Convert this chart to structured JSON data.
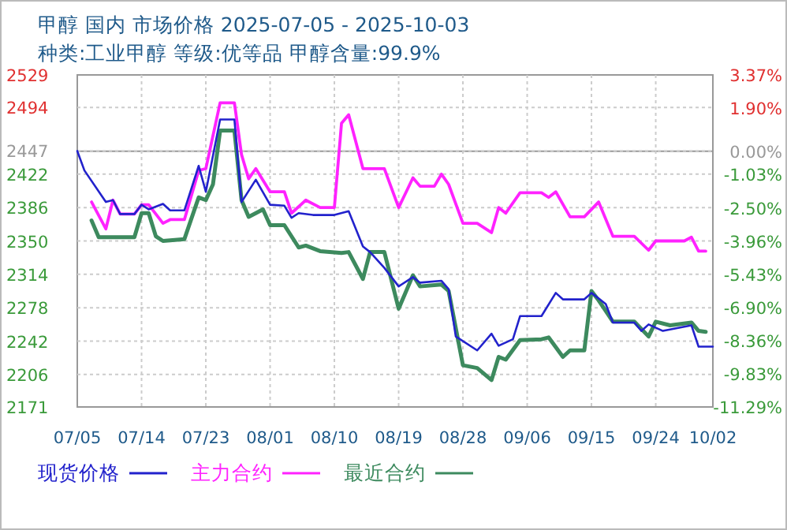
{
  "chart_data": {
    "type": "line",
    "title": "甲醇 国内 市场价格 2025-07-05 - 2025-10-03",
    "subtitle": "种类:工业甲醇 等级:优等品 甲醇含量:99.9%",
    "xlim": [
      "--07-05",
      "--10-02"
    ],
    "xticks": [
      {
        "value": "--07-05",
        "label": "07/05"
      },
      {
        "value": "--07-14",
        "label": "07/14"
      },
      {
        "value": "--07-23",
        "label": "07/23"
      },
      {
        "value": "--08-01",
        "label": "08/01"
      },
      {
        "value": "--08-10",
        "label": "08/10"
      },
      {
        "value": "--08-19",
        "label": "08/19"
      },
      {
        "value": "--08-28",
        "label": "08/28"
      },
      {
        "value": "--09-06",
        "label": "09/06"
      },
      {
        "value": "--09-15",
        "label": "09/15"
      },
      {
        "value": "--09-24",
        "label": "09/24"
      },
      {
        "value": "--10-02",
        "label": "10/02"
      }
    ],
    "ylim": [
      2171,
      2529
    ],
    "yticks": [
      2529,
      2494,
      2447,
      2422,
      2386,
      2350,
      2314,
      2278,
      2242,
      2206,
      2171
    ],
    "y2lim": [
      -11.29,
      3.37
    ],
    "y2ticks": [
      {
        "value": 3.37,
        "label": "3.37%"
      },
      {
        "value": 1.9,
        "label": "1.90%"
      },
      {
        "value": 0,
        "label": "0.00%"
      },
      {
        "value": -1.03,
        "label": "-1.03%"
      },
      {
        "value": -2.5,
        "label": "-2.50%"
      },
      {
        "value": -3.96,
        "label": "-3.96%"
      },
      {
        "value": -5.43,
        "label": "-5.43%"
      },
      {
        "value": -6.9,
        "label": "-6.90%"
      },
      {
        "value": -8.36,
        "label": "-8.36%"
      },
      {
        "value": -9.83,
        "label": "-9.83%"
      },
      {
        "value": -11.29,
        "label": "-11.29%"
      }
    ],
    "ref_lines": [
      {
        "axis": "y2",
        "value": 0,
        "color": "#999999",
        "line_style": "solid"
      }
    ],
    "grid": true,
    "legend": "bottom",
    "marker": "none",
    "line_style": "solid",
    "series": [
      {
        "name": "现货价格",
        "color": "#2222cc",
        "x": [
          "--07-05",
          "--07-06",
          "--07-09",
          "--07-10",
          "--07-11",
          "--07-13",
          "--07-14",
          "--07-15",
          "--07-17",
          "--07-18",
          "--07-20",
          "--07-22",
          "--07-23",
          "--07-25",
          "--07-27",
          "--07-28",
          "--07-30",
          "--08-01",
          "--08-03",
          "--08-04",
          "--08-05",
          "--08-07",
          "--08-10",
          "--08-12",
          "--08-14",
          "--08-15",
          "--08-17",
          "--08-19",
          "--08-21",
          "--08-22",
          "--08-25",
          "--08-26",
          "--08-27",
          "--08-30",
          "--09-01",
          "--09-02",
          "--09-04",
          "--09-05",
          "--09-08",
          "--09-10",
          "--09-11",
          "--09-14",
          "--09-15",
          "--09-17",
          "--09-18",
          "--09-21",
          "--09-22",
          "--09-23",
          "--09-25",
          "--09-29",
          "--09-30",
          "--10-02"
        ],
        "values": [
          2447,
          2426,
          2392,
          2394,
          2379,
          2379,
          2389,
          2384,
          2390,
          2383,
          2383,
          2431,
          2403,
          2481,
          2481,
          2392,
          2416,
          2389,
          2388,
          2375,
          2380,
          2378,
          2378,
          2382,
          2344,
          2338,
          2321,
          2301,
          2311,
          2305,
          2307,
          2298,
          2247,
          2232,
          2250,
          2237,
          2244,
          2269,
          2269,
          2294,
          2287,
          2287,
          2294,
          2282,
          2262,
          2262,
          2253,
          2260,
          2253,
          2259,
          2236,
          2236
        ]
      },
      {
        "name": "主力合约",
        "color": "#ff22ff",
        "x": [
          "--07-07",
          "--07-09",
          "--07-10",
          "--07-11",
          "--07-13",
          "--07-14",
          "--07-15",
          "--07-17",
          "--07-18",
          "--07-20",
          "--07-22",
          "--07-23",
          "--07-25",
          "--07-27",
          "--07-28",
          "--07-29",
          "--07-30",
          "--08-01",
          "--08-03",
          "--08-04",
          "--08-06",
          "--08-08",
          "--08-10",
          "--08-11",
          "--08-12",
          "--08-14",
          "--08-17",
          "--08-19",
          "--08-21",
          "--08-22",
          "--08-24",
          "--08-25",
          "--08-26",
          "--08-28",
          "--08-30",
          "--09-01",
          "--09-02",
          "--09-03",
          "--09-05",
          "--09-08",
          "--09-09",
          "--09-10",
          "--09-12",
          "--09-14",
          "--09-16",
          "--09-18",
          "--09-21",
          "--09-23",
          "--09-24",
          "--09-28",
          "--09-29",
          "--09-30",
          "--10-01"
        ],
        "values": [
          2392,
          2363,
          2394,
          2379,
          2379,
          2389,
          2389,
          2369,
          2373,
          2373,
          2426,
          2428,
          2499,
          2499,
          2443,
          2417,
          2428,
          2403,
          2403,
          2380,
          2394,
          2386,
          2386,
          2477,
          2486,
          2428,
          2428,
          2386,
          2418,
          2409,
          2409,
          2422,
          2411,
          2369,
          2369,
          2359,
          2386,
          2380,
          2402,
          2402,
          2397,
          2403,
          2376,
          2376,
          2392,
          2355,
          2355,
          2340,
          2350,
          2350,
          2354,
          2339,
          2339
        ]
      },
      {
        "name": "最近合约",
        "color": "#3d8a5e",
        "x": [
          "--07-07",
          "--07-08",
          "--07-13",
          "--07-14",
          "--07-15",
          "--07-16",
          "--07-17",
          "--07-20",
          "--07-22",
          "--07-23",
          "--07-24",
          "--07-25",
          "--07-27",
          "--07-28",
          "--07-29",
          "--07-31",
          "--08-01",
          "--08-03",
          "--08-05",
          "--08-06",
          "--08-08",
          "--08-11",
          "--08-12",
          "--08-14",
          "--08-15",
          "--08-17",
          "--08-19",
          "--08-21",
          "--08-22",
          "--08-25",
          "--08-26",
          "--08-28",
          "--08-30",
          "--09-01",
          "--09-02",
          "--09-03",
          "--09-05",
          "--09-08",
          "--09-09",
          "--09-11",
          "--09-12",
          "--09-14",
          "--09-15",
          "--09-16",
          "--09-18",
          "--09-21",
          "--09-23",
          "--09-24",
          "--09-26",
          "--09-29",
          "--09-30",
          "--10-01"
        ],
        "values": [
          2372,
          2354,
          2354,
          2380,
          2380,
          2355,
          2350,
          2352,
          2397,
          2394,
          2411,
          2469,
          2469,
          2394,
          2376,
          2384,
          2367,
          2367,
          2343,
          2345,
          2339,
          2337,
          2338,
          2309,
          2338,
          2338,
          2277,
          2313,
          2301,
          2303,
          2296,
          2216,
          2213,
          2200,
          2225,
          2222,
          2243,
          2244,
          2246,
          2225,
          2232,
          2232,
          2296,
          2286,
          2263,
          2263,
          2247,
          2263,
          2259,
          2262,
          2253,
          2252
        ]
      }
    ]
  }
}
